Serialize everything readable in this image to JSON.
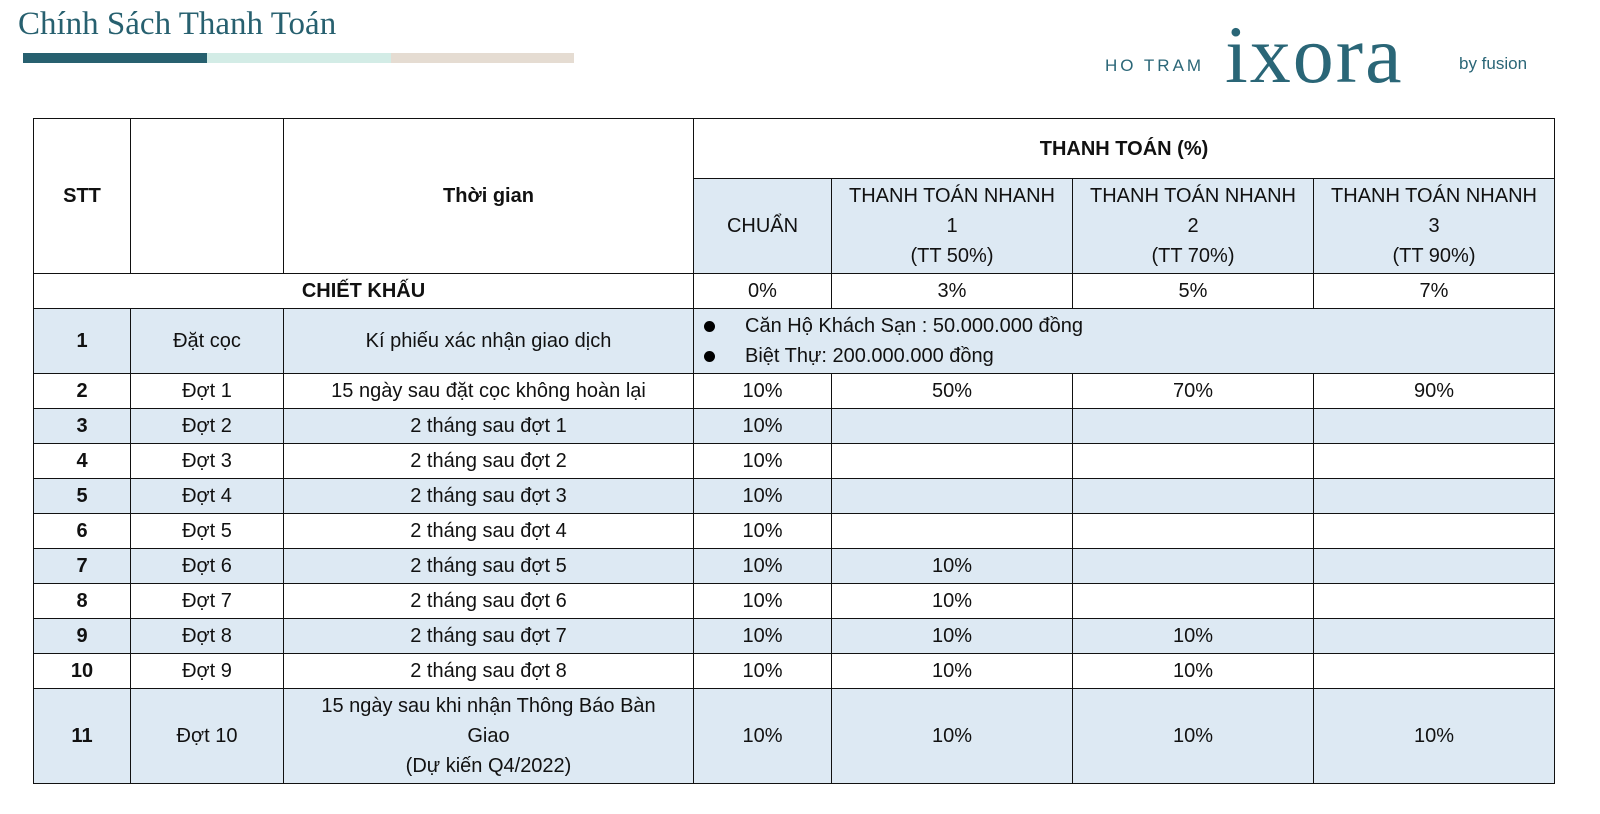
{
  "header": {
    "title": "Chính Sách Thanh Toán",
    "accent_colors": [
      "#27606f",
      "#d3ece6",
      "#e5dcd2"
    ]
  },
  "logo": {
    "prefix": "HO TRAM",
    "name": "ixora",
    "suffix": "by fusion"
  },
  "table": {
    "col_stt": "STT",
    "col_time": "Thời gian",
    "col_payment": "THANH TOÁN (%)",
    "plans": [
      {
        "l1": "CHUẨN",
        "l2": "",
        "l3": ""
      },
      {
        "l1": "THANH TOÁN NHANH",
        "l2": "1",
        "l3": "(TT 50%)"
      },
      {
        "l1": "THANH TOÁN NHANH",
        "l2": "2",
        "l3": "(TT 70%)"
      },
      {
        "l1": "THANH TOÁN NHANH",
        "l2": "3",
        "l3": "(TT 90%)"
      }
    ],
    "discount": {
      "label": "CHIẾT KHẤU",
      "values": [
        "0%",
        "3%",
        "5%",
        "7%"
      ]
    },
    "deposit": {
      "stt": "1",
      "stage": "Đặt cọc",
      "time": "Kí phiếu xác nhận giao dịch",
      "bullets": [
        "Căn Hộ Khách Sạn : 50.000.000 đồng",
        "Biệt Thự: 200.000.000 đồng"
      ]
    },
    "rows": [
      {
        "stt": "2",
        "stage": "Đợt 1",
        "time": "15 ngày sau đặt cọc không hoàn lại",
        "v": [
          "10%",
          "50%",
          "70%",
          "90%"
        ]
      },
      {
        "stt": "3",
        "stage": "Đợt 2",
        "time": "2 tháng sau đợt 1",
        "v": [
          "10%",
          "",
          "",
          ""
        ]
      },
      {
        "stt": "4",
        "stage": "Đợt 3",
        "time": "2 tháng sau đợt 2",
        "v": [
          "10%",
          "",
          "",
          ""
        ]
      },
      {
        "stt": "5",
        "stage": "Đợt 4",
        "time": "2 tháng sau đợt 3",
        "v": [
          "10%",
          "",
          "",
          ""
        ]
      },
      {
        "stt": "6",
        "stage": "Đợt 5",
        "time": "2 tháng sau đợt 4",
        "v": [
          "10%",
          "",
          "",
          ""
        ]
      },
      {
        "stt": "7",
        "stage": "Đợt 6",
        "time": "2 tháng sau đợt 5",
        "v": [
          "10%",
          "10%",
          "",
          ""
        ]
      },
      {
        "stt": "8",
        "stage": "Đợt 7",
        "time": "2 tháng sau đợt 6",
        "v": [
          "10%",
          "10%",
          "",
          ""
        ]
      },
      {
        "stt": "9",
        "stage": "Đợt 8",
        "time": "2 tháng sau đợt 7",
        "v": [
          "10%",
          "10%",
          "10%",
          ""
        ]
      },
      {
        "stt": "10",
        "stage": "Đợt 9",
        "time": "2 tháng sau đợt 8",
        "v": [
          "10%",
          "10%",
          "10%",
          ""
        ]
      }
    ],
    "last": {
      "stt": "11",
      "stage": "Đợt 10",
      "time1": "15 ngày sau khi nhận Thông Báo Bàn",
      "time2": "Giao",
      "time3": "(Dự kiến Q4/2022)",
      "v": [
        "10%",
        "10%",
        "10%",
        "10%"
      ]
    }
  }
}
